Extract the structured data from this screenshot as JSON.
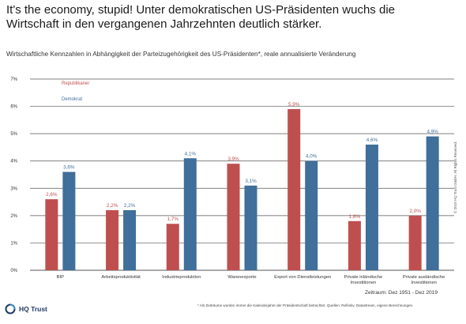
{
  "headline": "It's the economy, stupid! Unter demokratischen US-Präsidenten wuchs die Wirtschaft in den vergangenen Jahrzehnten deutlich stärker.",
  "subtitle": "Wirtschaftliche Kennzahlen in Abhängigkeit der Parteizugehörigkeit des US-Präsidenten*, reale annualisierte Veränderung",
  "copyright": "© 2019 HQ Trust GmbH. All Rights Reserved.",
  "period": "Zeitraum: Dez 1951 - Dez 2019",
  "footnote": "* Als Zeiträume wurden immer die Kalenderjahre der Präsidentschaft betrachtet. Quellen: Refinitiv, Datastream, eigene Berechnungen.",
  "logo": {
    "text": "HQ Trust",
    "icon": "hq-trust-logo-icon"
  },
  "colors": {
    "republikaner": "#bf4f4f",
    "demokrat": "#3f6f9a",
    "grid": "#555555"
  },
  "chart_data": {
    "type": "bar",
    "title": "",
    "xlabel": "",
    "ylabel": "",
    "ylim": [
      0,
      7
    ],
    "yticks": [
      "0%",
      "1%",
      "2%",
      "3%",
      "4%",
      "5%",
      "6%",
      "7%"
    ],
    "grid": true,
    "legend_placement": "top-left",
    "categories": [
      [
        "BIP"
      ],
      [
        "Arbeitsproduktivität"
      ],
      [
        "Industrieproduktion"
      ],
      [
        "Warenexporte"
      ],
      [
        "Export von Dienstleistungen"
      ],
      [
        "Private inländische",
        "Investitionen"
      ],
      [
        "Private ausländische",
        "Investitionen"
      ]
    ],
    "series": [
      {
        "name": "Republikaner",
        "values": [
          2.6,
          2.2,
          1.7,
          3.9,
          5.9,
          1.8,
          2.0
        ],
        "labels": [
          "2,6%",
          "2,2%",
          "1,7%",
          "3,9%",
          "5,9%",
          "1,8%",
          "2,0%"
        ]
      },
      {
        "name": "Demokrat",
        "values": [
          3.6,
          2.2,
          4.1,
          3.1,
          4.0,
          4.6,
          4.9
        ],
        "labels": [
          "3,6%",
          "2,2%",
          "4,1%",
          "3,1%",
          "4,0%",
          "4,6%",
          "4,9%"
        ]
      }
    ]
  }
}
